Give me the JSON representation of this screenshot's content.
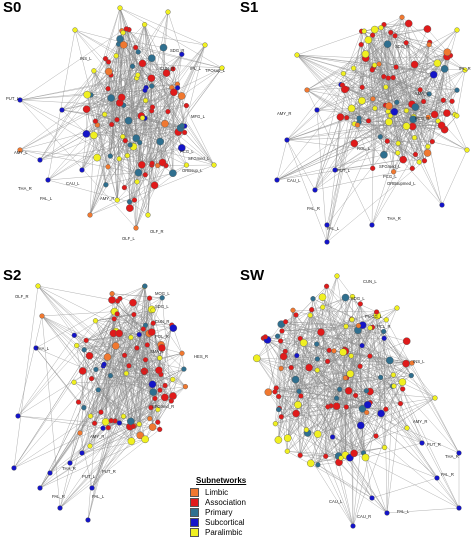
{
  "colors": {
    "limbic": "#f07830",
    "association": "#e01a1a",
    "primary": "#2f6f8f",
    "subcortical": "#1414c8",
    "paralimbic": "#f0f020",
    "edge": "#8c8c8c"
  },
  "legend": {
    "title": "Subnetworks",
    "items": [
      {
        "label": "Limbic",
        "color": "#f07830"
      },
      {
        "label": "Association",
        "color": "#e01a1a"
      },
      {
        "label": "Primary",
        "color": "#2f6f8f"
      },
      {
        "label": "Subcortical",
        "color": "#1414c8"
      },
      {
        "label": "Paralimbic",
        "color": "#f0f020"
      }
    ]
  },
  "panels": [
    {
      "title": "S0",
      "labels": [
        "PUT_L",
        "THA_R",
        "CAU_L",
        "PAL_L",
        "AMY_L",
        "OLF_R",
        "OLF_L",
        "IPL_L",
        "MFG_L",
        "PCG_L",
        "SFGmed_L",
        "ORBsup_L",
        "SDG_R",
        "CUN_R",
        "TPOsup_L",
        "INS_L",
        "AMY_R"
      ]
    },
    {
      "title": "S1",
      "labels": [
        "PUT_L",
        "CAU_L",
        "PAL_L",
        "AMY_R",
        "PAL_R",
        "THA_R",
        "IPL_R",
        "SMA_L",
        "PCG_L",
        "SFGmed_L",
        "SDG_R",
        "PCG_R",
        "ROL_L",
        "ORBsupmed_L"
      ]
    },
    {
      "title": "S2",
      "labels": [
        "THA_L",
        "PAL_L",
        "PUT_L",
        "AMY_R",
        "OLF_R",
        "PUT_R",
        "THA_R",
        "PAL_R",
        "MOG_L",
        "SDG_L",
        "CUN_R",
        "POL_R",
        "SMA_L",
        "HES_R",
        "SFGmed_R"
      ]
    },
    {
      "title": "SW",
      "labels": [
        "CUN_L",
        "SDG_L",
        "PreCG_L",
        "PCL_R",
        "AMY_R",
        "PUT_R",
        "THA_R",
        "CAU_L",
        "PAL_R",
        "CAU_R",
        "PAL_L",
        "INS_L"
      ]
    }
  ]
}
